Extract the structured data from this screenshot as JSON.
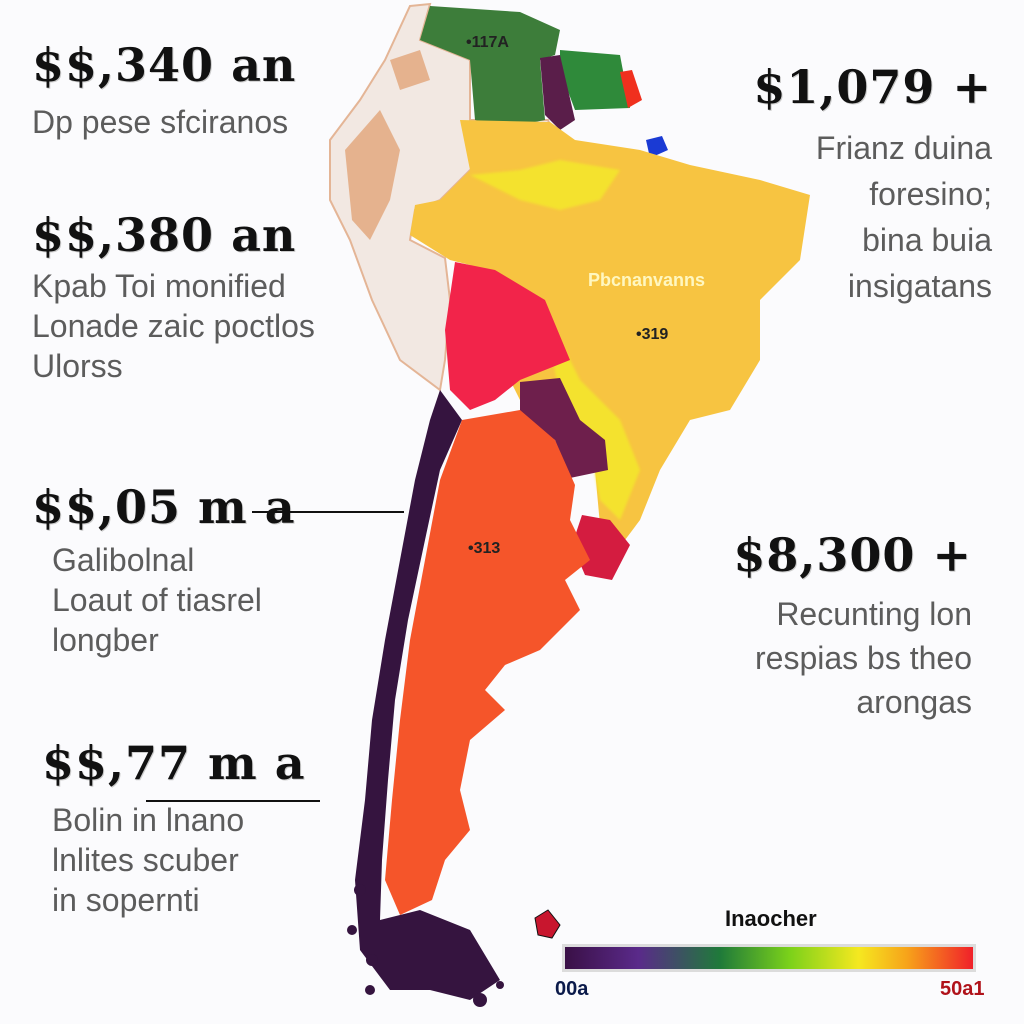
{
  "callouts": {
    "c1": {
      "value": "$$,340 an",
      "lines": [
        "Dp pese sfciranos"
      ]
    },
    "c2": {
      "value": "$$,380 an",
      "lines": [
        "Kpab Toi monified",
        "Lonade zaic poctlos",
        "Ulorss"
      ]
    },
    "c3": {
      "value": "$$,05 m a",
      "lines": [
        "Galibolnal",
        "Loaut of tiasrel",
        "longber"
      ]
    },
    "c4": {
      "value": "$$,77 m a",
      "lines": [
        "Bolin in lnano",
        "lnlites scuber",
        "in sopernti"
      ]
    },
    "c5": {
      "value": "$1,079 +",
      "lines": [
        "Frianz duina",
        "foresino;",
        "bina buia",
        "insigatans"
      ]
    },
    "c6": {
      "value": "$8,300 +",
      "lines": [
        "Recunting lon",
        "respias bs theo",
        "arongas"
      ]
    }
  },
  "map_labels": {
    "north": "•117A",
    "center_region": "Pbcnanvanns",
    "brazil": "•319",
    "argentina": "•313"
  },
  "legend": {
    "title": "Inaocher",
    "min_label": "00a",
    "max_label": "50a1",
    "colors": [
      "#3a1046",
      "#5a2a8a",
      "#1f7a3a",
      "#7bd11a",
      "#f5e820",
      "#f7a21a",
      "#f0202a"
    ]
  },
  "region_colors": {
    "colombia": "#3d7d3a",
    "venezuela_east": "#2f8a3a",
    "peru": "#e0a071",
    "brazil": "#f7c441",
    "bolivia": "#f2244a",
    "paraguay": "#6e1f4c",
    "argentina": "#f5552a",
    "chile": "#35143f",
    "uruguay": "#d41c40"
  }
}
